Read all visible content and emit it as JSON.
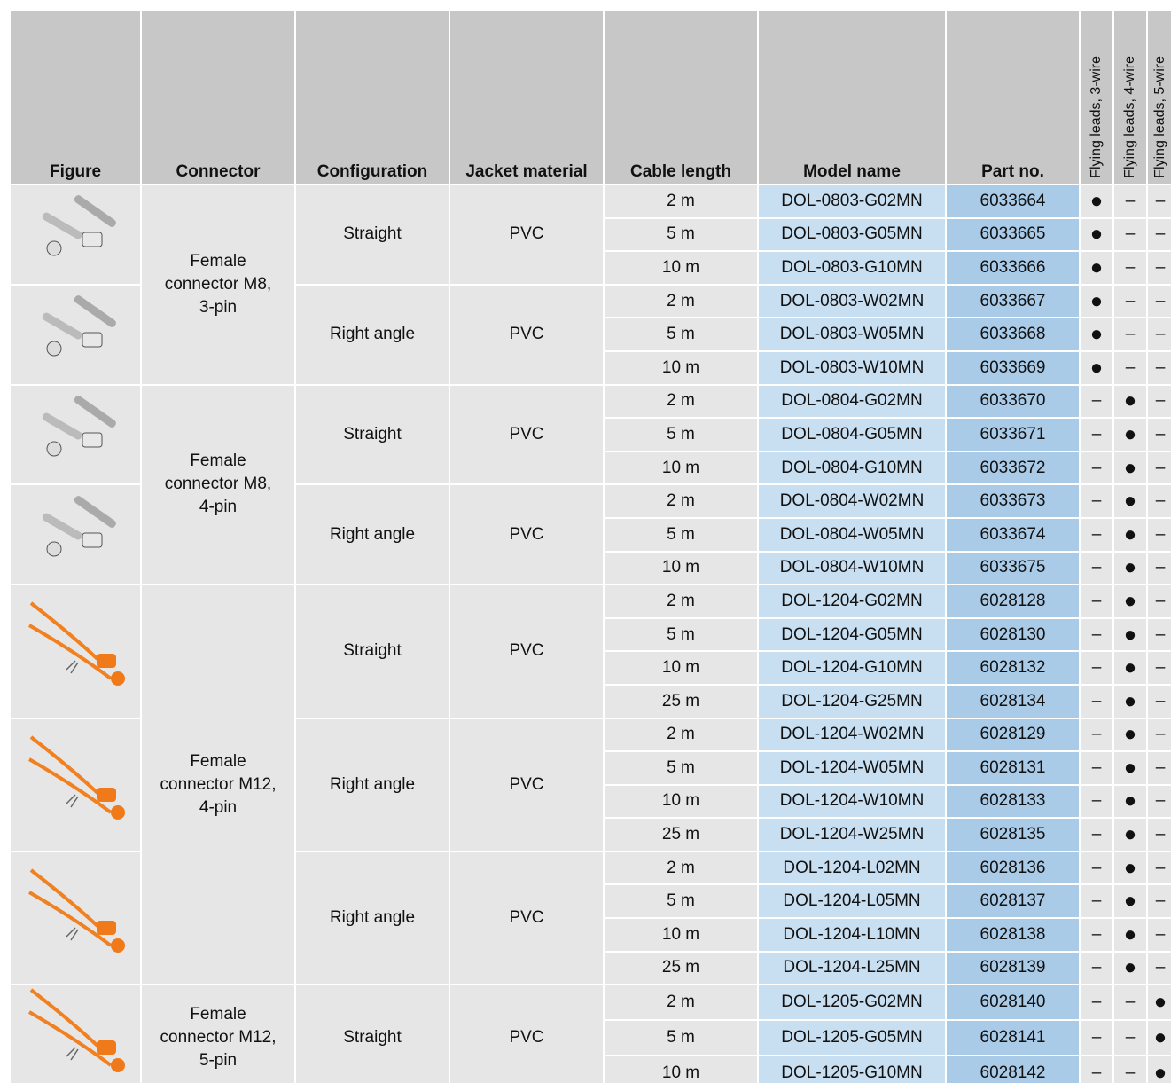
{
  "headers": [
    "Figure",
    "Connector",
    "Configuration",
    "Jacket material",
    "Cable length",
    "Model name",
    "Part no.",
    "Flying leads, 3-wire",
    "Flying leads, 4-wire",
    "Flying leads, 5-wire"
  ],
  "connectors": [
    {
      "label": "Female connector M8, 3-pin",
      "groups": [
        {
          "configuration": "Straight",
          "jacket": "PVC",
          "rows": [
            [
              "2 m",
              "DOL-0803-G02MN",
              "6033664",
              "●",
              "–",
              "–"
            ],
            [
              "5 m",
              "DOL-0803-G05MN",
              "6033665",
              "●",
              "–",
              "–"
            ],
            [
              "10 m",
              "DOL-0803-G10MN",
              "6033666",
              "●",
              "–",
              "–"
            ]
          ]
        },
        {
          "configuration": "Right angle",
          "jacket": "PVC",
          "rows": [
            [
              "2 m",
              "DOL-0803-W02MN",
              "6033667",
              "●",
              "–",
              "–"
            ],
            [
              "5 m",
              "DOL-0803-W05MN",
              "6033668",
              "●",
              "–",
              "–"
            ],
            [
              "10 m",
              "DOL-0803-W10MN",
              "6033669",
              "●",
              "–",
              "–"
            ]
          ]
        }
      ]
    },
    {
      "label": "Female connector M8, 4-pin",
      "groups": [
        {
          "configuration": "Straight",
          "jacket": "PVC",
          "rows": [
            [
              "2 m",
              "DOL-0804-G02MN",
              "6033670",
              "–",
              "●",
              "–"
            ],
            [
              "5 m",
              "DOL-0804-G05MN",
              "6033671",
              "–",
              "●",
              "–"
            ],
            [
              "10 m",
              "DOL-0804-G10MN",
              "6033672",
              "–",
              "●",
              "–"
            ]
          ]
        },
        {
          "configuration": "Right angle",
          "jacket": "PVC",
          "rows": [
            [
              "2 m",
              "DOL-0804-W02MN",
              "6033673",
              "–",
              "●",
              "–"
            ],
            [
              "5 m",
              "DOL-0804-W05MN",
              "6033674",
              "–",
              "●",
              "–"
            ],
            [
              "10 m",
              "DOL-0804-W10MN",
              "6033675",
              "–",
              "●",
              "–"
            ]
          ]
        }
      ]
    },
    {
      "label": "Female connector M12, 4-pin",
      "groups": [
        {
          "configuration": "Straight",
          "jacket": "PVC",
          "rows": [
            [
              "2 m",
              "DOL-1204-G02MN",
              "6028128",
              "–",
              "●",
              "–"
            ],
            [
              "5 m",
              "DOL-1204-G05MN",
              "6028130",
              "–",
              "●",
              "–"
            ],
            [
              "10 m",
              "DOL-1204-G10MN",
              "6028132",
              "–",
              "●",
              "–"
            ],
            [
              "25 m",
              "DOL-1204-G25MN",
              "6028134",
              "–",
              "●",
              "–"
            ]
          ]
        },
        {
          "configuration": "Right angle",
          "jacket": "PVC",
          "rows": [
            [
              "2 m",
              "DOL-1204-W02MN",
              "6028129",
              "–",
              "●",
              "–"
            ],
            [
              "5 m",
              "DOL-1204-W05MN",
              "6028131",
              "–",
              "●",
              "–"
            ],
            [
              "10 m",
              "DOL-1204-W10MN",
              "6028133",
              "–",
              "●",
              "–"
            ],
            [
              "25 m",
              "DOL-1204-W25MN",
              "6028135",
              "–",
              "●",
              "–"
            ]
          ]
        },
        {
          "configuration": "Right angle",
          "jacket": "PVC",
          "rows": [
            [
              "2 m",
              "DOL-1204-L02MN",
              "6028136",
              "–",
              "●",
              "–"
            ],
            [
              "5 m",
              "DOL-1204-L05MN",
              "6028137",
              "–",
              "●",
              "–"
            ],
            [
              "10 m",
              "DOL-1204-L10MN",
              "6028138",
              "–",
              "●",
              "–"
            ],
            [
              "25 m",
              "DOL-1204-L25MN",
              "6028139",
              "–",
              "●",
              "–"
            ]
          ]
        }
      ]
    },
    {
      "label": "Female connector M12, 5-pin",
      "groups": [
        {
          "configuration": "Straight",
          "jacket": "PVC",
          "rows": [
            [
              "2 m",
              "DOL-1205-G02MN",
              "6028140",
              "–",
              "–",
              "●"
            ],
            [
              "5 m",
              "DOL-1205-G05MN",
              "6028141",
              "–",
              "–",
              "●"
            ],
            [
              "10 m",
              "DOL-1205-G10MN",
              "6028142",
              "–",
              "–",
              "●"
            ]
          ]
        }
      ]
    }
  ]
}
